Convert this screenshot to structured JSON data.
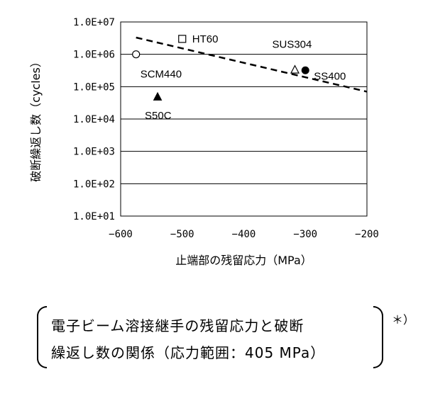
{
  "chart_data": {
    "type": "scatter",
    "xlabel": "止端部の残留応力（MPa）",
    "ylabel": "破断繰返し数（cycles）",
    "xlim": [
      -600,
      -200
    ],
    "ylim_log10": [
      1,
      7
    ],
    "x_ticks": [
      -600,
      -500,
      -400,
      -300,
      -200
    ],
    "x_tick_labels": [
      "−600",
      "−500",
      "−400",
      "−300",
      "−200"
    ],
    "y_ticks": [
      1,
      2,
      3,
      4,
      5,
      6,
      7
    ],
    "y_tick_labels": [
      "1.0E+01",
      "1.0E+02",
      "1.0E+03",
      "1.0E+04",
      "1.0E+05",
      "1.0E+06",
      "1.0E+07"
    ],
    "grid": "horizontal",
    "series": [
      {
        "label": "HT60",
        "marker": "square-open",
        "x": -500,
        "y": 3000000
      },
      {
        "label": "SCM440",
        "marker": "circle-open",
        "x": -575,
        "y": 1000000
      },
      {
        "label": "SUS304",
        "marker": "triangle-open",
        "x": -317,
        "y": 330000
      },
      {
        "label": "SS400",
        "marker": "circle-filled",
        "x": -300,
        "y": 320000
      },
      {
        "label": "S50C",
        "marker": "triangle-filled",
        "x": -540,
        "y": 48000
      }
    ],
    "trendline": {
      "style": "dashed",
      "x": [
        -575,
        -200
      ],
      "y": [
        3300000,
        70000
      ]
    }
  },
  "caption": {
    "line1": "電子ビーム溶接継手の残留応力と破断",
    "line2": "繰返し数の関係（応力範囲：405 MPa）",
    "note": "＊）"
  }
}
